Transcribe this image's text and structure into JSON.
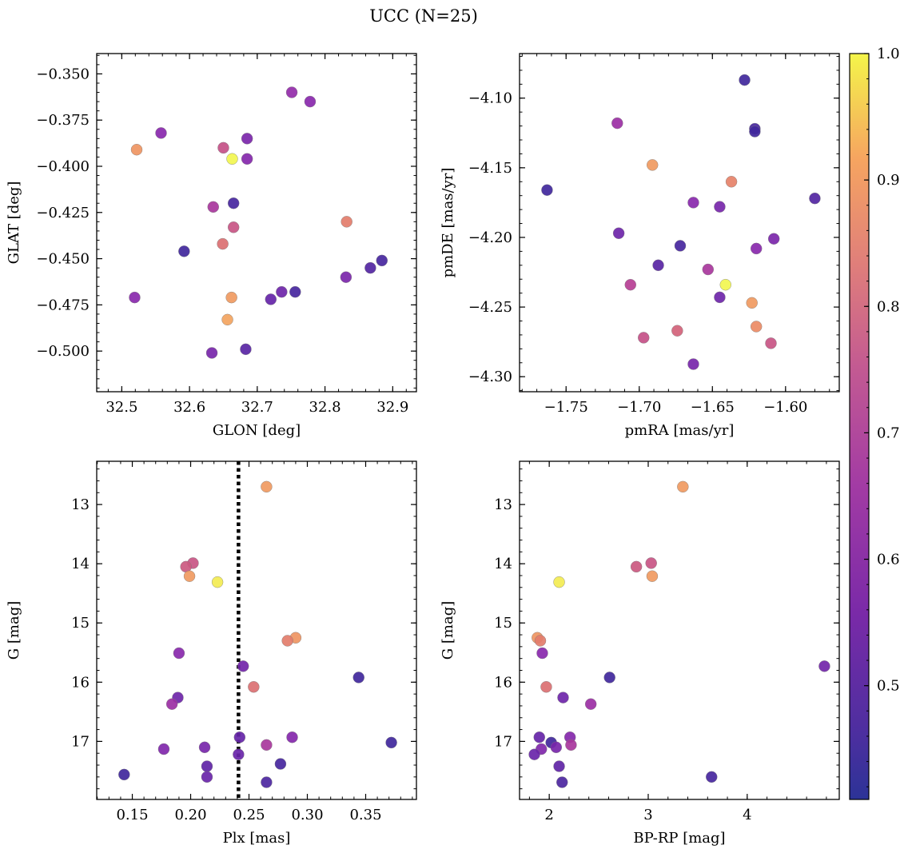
{
  "title": "UCC (N=25)",
  "colorbar": {
    "ticks": [
      "0.5",
      "0.6",
      "0.7",
      "0.8",
      "0.9",
      "1.0"
    ],
    "tick_values": [
      0.5,
      0.6,
      0.7,
      0.8,
      0.9,
      1.0
    ],
    "range": [
      0.41,
      1.0
    ],
    "colormap": "plasma"
  },
  "chart_data": [
    {
      "type": "scatter",
      "xlabel": "GLON [deg]",
      "ylabel": "GLAT [deg]",
      "xlim": [
        32.463,
        32.935
      ],
      "ylim": [
        -0.522,
        -0.339
      ],
      "y_inverted": false,
      "xticks": [
        32.5,
        32.6,
        32.7,
        32.8,
        32.9
      ],
      "xticklabels": [
        "32.5",
        "32.6",
        "32.7",
        "32.8",
        "32.9"
      ],
      "yticks": [
        -0.35,
        -0.375,
        -0.4,
        -0.425,
        -0.45,
        -0.475,
        -0.5
      ],
      "yticklabels": [
        "−0.350",
        "−0.375",
        "−0.400",
        "−0.425",
        "−0.450",
        "−0.475",
        "−0.500"
      ],
      "points": [
        {
          "x": 32.751,
          "y": -0.36,
          "c": 0.6
        },
        {
          "x": 32.778,
          "y": -0.365,
          "c": 0.58
        },
        {
          "x": 32.558,
          "y": -0.382,
          "c": 0.58
        },
        {
          "x": 32.685,
          "y": -0.385,
          "c": 0.55
        },
        {
          "x": 32.522,
          "y": -0.391,
          "c": 0.87
        },
        {
          "x": 32.65,
          "y": -0.39,
          "c": 0.72
        },
        {
          "x": 32.663,
          "y": -0.396,
          "c": 1.0
        },
        {
          "x": 32.685,
          "y": -0.396,
          "c": 0.57
        },
        {
          "x": 32.665,
          "y": -0.42,
          "c": 0.45
        },
        {
          "x": 32.635,
          "y": -0.422,
          "c": 0.65
        },
        {
          "x": 32.665,
          "y": -0.433,
          "c": 0.73
        },
        {
          "x": 32.832,
          "y": -0.43,
          "c": 0.82
        },
        {
          "x": 32.649,
          "y": -0.442,
          "c": 0.79
        },
        {
          "x": 32.592,
          "y": -0.446,
          "c": 0.44
        },
        {
          "x": 32.884,
          "y": -0.451,
          "c": 0.45
        },
        {
          "x": 32.867,
          "y": -0.455,
          "c": 0.47
        },
        {
          "x": 32.831,
          "y": -0.46,
          "c": 0.55
        },
        {
          "x": 32.519,
          "y": -0.471,
          "c": 0.58
        },
        {
          "x": 32.736,
          "y": -0.468,
          "c": 0.52
        },
        {
          "x": 32.756,
          "y": -0.468,
          "c": 0.45
        },
        {
          "x": 32.72,
          "y": -0.472,
          "c": 0.5
        },
        {
          "x": 32.662,
          "y": -0.471,
          "c": 0.88
        },
        {
          "x": 32.656,
          "y": -0.483,
          "c": 0.9
        },
        {
          "x": 32.683,
          "y": -0.499,
          "c": 0.48
        },
        {
          "x": 32.633,
          "y": -0.501,
          "c": 0.54
        }
      ]
    },
    {
      "type": "scatter",
      "xlabel": "pmRA [mas/yr]",
      "ylabel": "pmDE [mas/yr]",
      "xlim": [
        -1.7818,
        -1.5633
      ],
      "ylim": [
        -4.3108,
        -4.068
      ],
      "y_inverted": false,
      "xticks": [
        -1.75,
        -1.7,
        -1.65,
        -1.6
      ],
      "xticklabels": [
        "−1.75",
        "−1.70",
        "−1.65",
        "−1.60"
      ],
      "yticks": [
        -4.1,
        -4.15,
        -4.2,
        -4.25,
        -4.3
      ],
      "yticklabels": [
        "−4.10",
        "−4.15",
        "−4.20",
        "−4.25",
        "−4.30"
      ],
      "points": [
        {
          "x": -1.628,
          "y": -4.087,
          "c": 0.44
        },
        {
          "x": -1.715,
          "y": -4.118,
          "c": 0.62
        },
        {
          "x": -1.621,
          "y": -4.122,
          "c": 0.45
        },
        {
          "x": -1.621,
          "y": -4.124,
          "c": 0.44
        },
        {
          "x": -1.691,
          "y": -4.148,
          "c": 0.88
        },
        {
          "x": -1.637,
          "y": -4.16,
          "c": 0.83
        },
        {
          "x": -1.763,
          "y": -4.166,
          "c": 0.44
        },
        {
          "x": -1.58,
          "y": -4.172,
          "c": 0.47
        },
        {
          "x": -1.663,
          "y": -4.175,
          "c": 0.58
        },
        {
          "x": -1.645,
          "y": -4.178,
          "c": 0.54
        },
        {
          "x": -1.714,
          "y": -4.197,
          "c": 0.52
        },
        {
          "x": -1.608,
          "y": -4.201,
          "c": 0.55
        },
        {
          "x": -1.672,
          "y": -4.206,
          "c": 0.45
        },
        {
          "x": -1.62,
          "y": -4.208,
          "c": 0.58
        },
        {
          "x": -1.687,
          "y": -4.22,
          "c": 0.48
        },
        {
          "x": -1.653,
          "y": -4.223,
          "c": 0.65
        },
        {
          "x": -1.706,
          "y": -4.234,
          "c": 0.68
        },
        {
          "x": -1.641,
          "y": -4.234,
          "c": 1.0
        },
        {
          "x": -1.645,
          "y": -4.243,
          "c": 0.52
        },
        {
          "x": -1.623,
          "y": -4.247,
          "c": 0.88
        },
        {
          "x": -1.62,
          "y": -4.264,
          "c": 0.85
        },
        {
          "x": -1.674,
          "y": -4.267,
          "c": 0.76
        },
        {
          "x": -1.697,
          "y": -4.272,
          "c": 0.72
        },
        {
          "x": -1.61,
          "y": -4.276,
          "c": 0.73
        },
        {
          "x": -1.663,
          "y": -4.291,
          "c": 0.54
        }
      ]
    },
    {
      "type": "scatter",
      "xlabel": "Plx [mas]",
      "ylabel": "G [mag]",
      "xlim": [
        0.1195,
        0.3935
      ],
      "ylim": [
        17.98,
        12.27
      ],
      "y_inverted": true,
      "xticks": [
        0.15,
        0.2,
        0.25,
        0.3,
        0.35
      ],
      "xticklabels": [
        "0.15",
        "0.20",
        "0.25",
        "0.30",
        "0.35"
      ],
      "yticks": [
        13,
        14,
        15,
        16,
        17
      ],
      "yticklabels": [
        "13",
        "14",
        "15",
        "16",
        "17"
      ],
      "vline": {
        "x": 0.241,
        "style": "dotted"
      },
      "points": [
        {
          "x": 0.265,
          "y": 12.7,
          "c": 0.88
        },
        {
          "x": 0.202,
          "y": 13.99,
          "c": 0.73
        },
        {
          "x": 0.196,
          "y": 14.05,
          "c": 0.74
        },
        {
          "x": 0.199,
          "y": 14.21,
          "c": 0.88
        },
        {
          "x": 0.223,
          "y": 14.31,
          "c": 0.99
        },
        {
          "x": 0.29,
          "y": 15.25,
          "c": 0.87
        },
        {
          "x": 0.283,
          "y": 15.3,
          "c": 0.82
        },
        {
          "x": 0.19,
          "y": 15.51,
          "c": 0.58
        },
        {
          "x": 0.245,
          "y": 15.73,
          "c": 0.53
        },
        {
          "x": 0.344,
          "y": 15.92,
          "c": 0.44
        },
        {
          "x": 0.254,
          "y": 16.08,
          "c": 0.79
        },
        {
          "x": 0.189,
          "y": 16.26,
          "c": 0.52
        },
        {
          "x": 0.184,
          "y": 16.37,
          "c": 0.62
        },
        {
          "x": 0.287,
          "y": 16.93,
          "c": 0.57
        },
        {
          "x": 0.242,
          "y": 16.93,
          "c": 0.5
        },
        {
          "x": 0.372,
          "y": 17.02,
          "c": 0.44
        },
        {
          "x": 0.265,
          "y": 17.06,
          "c": 0.65
        },
        {
          "x": 0.212,
          "y": 17.1,
          "c": 0.54
        },
        {
          "x": 0.177,
          "y": 17.13,
          "c": 0.56
        },
        {
          "x": 0.241,
          "y": 17.22,
          "c": 0.51
        },
        {
          "x": 0.277,
          "y": 17.38,
          "c": 0.45
        },
        {
          "x": 0.214,
          "y": 17.42,
          "c": 0.49
        },
        {
          "x": 0.143,
          "y": 17.56,
          "c": 0.44
        },
        {
          "x": 0.214,
          "y": 17.6,
          "c": 0.51
        },
        {
          "x": 0.265,
          "y": 17.69,
          "c": 0.46
        }
      ]
    },
    {
      "type": "scatter",
      "xlabel": "BP-RP [mag]",
      "ylabel": "G [mag]",
      "xlim": [
        1.7,
        4.93
      ],
      "ylim": [
        17.98,
        12.27
      ],
      "y_inverted": true,
      "xticks": [
        2,
        3,
        4
      ],
      "xticklabels": [
        "2",
        "3",
        "4"
      ],
      "yticks": [
        13,
        14,
        15,
        16,
        17
      ],
      "yticklabels": [
        "13",
        "14",
        "15",
        "16",
        "17"
      ],
      "points": [
        {
          "x": 3.35,
          "y": 12.7,
          "c": 0.88
        },
        {
          "x": 3.03,
          "y": 13.99,
          "c": 0.73
        },
        {
          "x": 2.88,
          "y": 14.05,
          "c": 0.74
        },
        {
          "x": 3.04,
          "y": 14.21,
          "c": 0.88
        },
        {
          "x": 2.1,
          "y": 14.31,
          "c": 0.99
        },
        {
          "x": 1.88,
          "y": 15.25,
          "c": 0.87
        },
        {
          "x": 1.91,
          "y": 15.3,
          "c": 0.82
        },
        {
          "x": 1.93,
          "y": 15.51,
          "c": 0.58
        },
        {
          "x": 4.78,
          "y": 15.73,
          "c": 0.53
        },
        {
          "x": 2.61,
          "y": 15.92,
          "c": 0.44
        },
        {
          "x": 1.97,
          "y": 16.08,
          "c": 0.79
        },
        {
          "x": 2.14,
          "y": 16.26,
          "c": 0.52
        },
        {
          "x": 2.42,
          "y": 16.37,
          "c": 0.62
        },
        {
          "x": 2.21,
          "y": 16.93,
          "c": 0.57
        },
        {
          "x": 1.9,
          "y": 16.93,
          "c": 0.5
        },
        {
          "x": 2.02,
          "y": 17.02,
          "c": 0.44
        },
        {
          "x": 2.22,
          "y": 17.06,
          "c": 0.65
        },
        {
          "x": 2.07,
          "y": 17.1,
          "c": 0.54
        },
        {
          "x": 1.92,
          "y": 17.13,
          "c": 0.56
        },
        {
          "x": 1.85,
          "y": 17.22,
          "c": 0.51
        },
        {
          "x": 2.1,
          "y": 17.42,
          "c": 0.49
        },
        {
          "x": 3.64,
          "y": 17.6,
          "c": 0.45
        },
        {
          "x": 2.13,
          "y": 17.69,
          "c": 0.46
        }
      ]
    }
  ]
}
